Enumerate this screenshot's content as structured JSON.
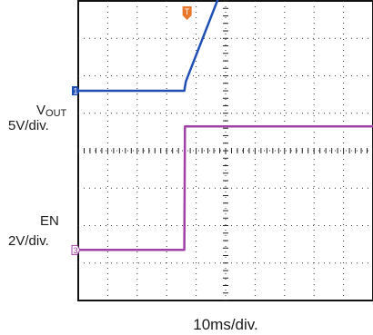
{
  "chart_data": {
    "type": "line",
    "title": "",
    "xlabel": "10ms/div.",
    "grid": true,
    "x_divisions": 10,
    "y_divisions": 8,
    "series": [
      {
        "name": "V",
        "name_sub": "OUT",
        "scale": "5V/div.",
        "marker": "1",
        "color": "#1f4fb4",
        "x_div": [
          0,
          3.6,
          3.65,
          6.4,
          10
        ],
        "y_div": [
          1.6,
          1.6,
          1.85,
          7.4,
          7.4
        ]
      },
      {
        "name": "EN",
        "scale": "2V/div.",
        "marker": "3",
        "color": "#a23fa8",
        "x_div": [
          0,
          3.6,
          3.62,
          10
        ],
        "y_div": [
          -2.65,
          -2.65,
          0.65,
          0.65
        ]
      }
    ],
    "trigger_marker": {
      "label": "T",
      "color": "#e8772b"
    }
  }
}
